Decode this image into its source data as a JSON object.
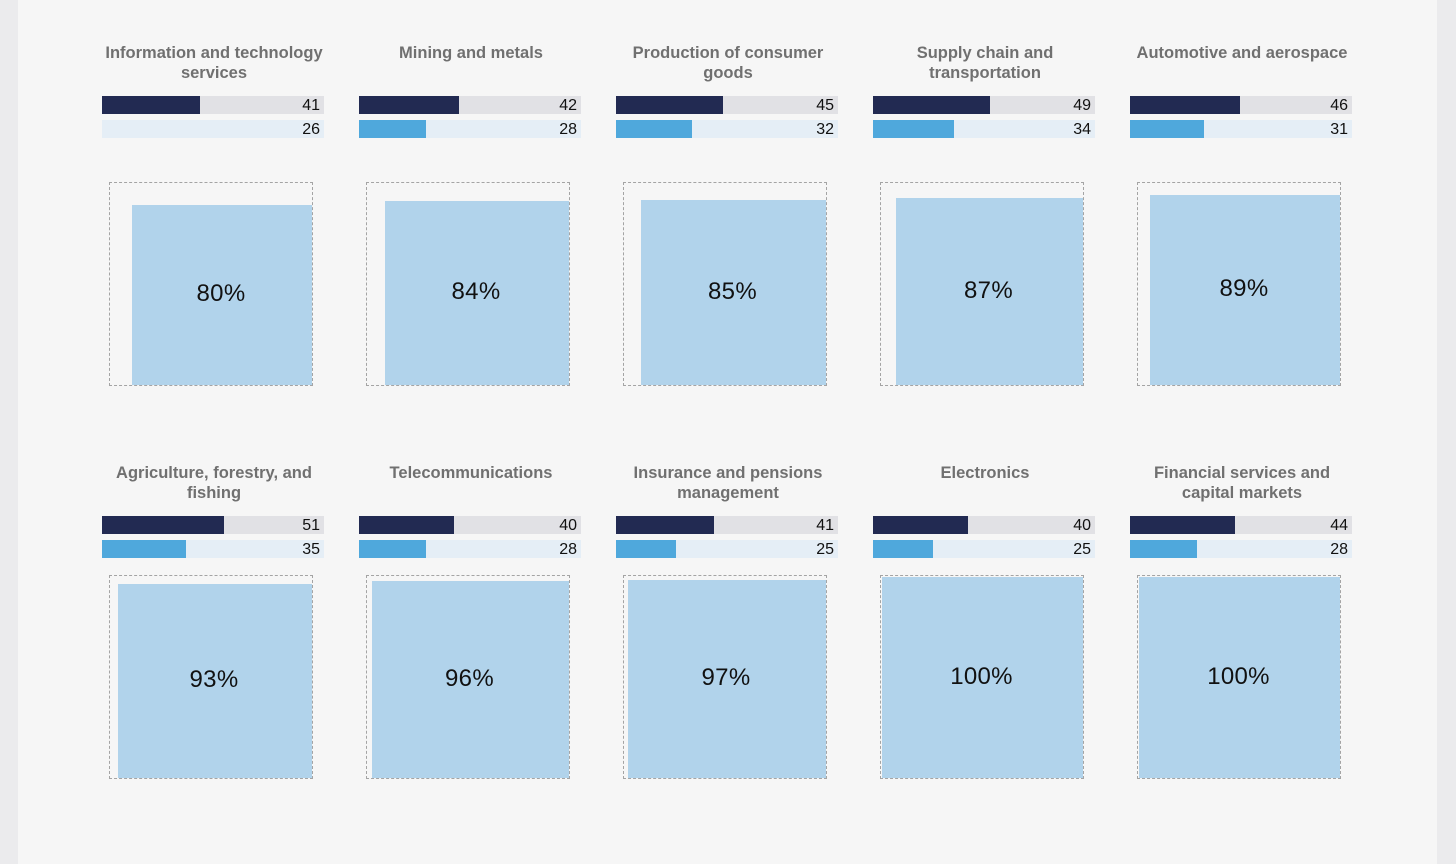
{
  "colors": {
    "dark_bar": "#222a52",
    "dark_track": "#e1e1e5",
    "light_bar": "#4fa8dc",
    "light_track": "#e5eef6",
    "square_fill": "#b1d3eb"
  },
  "bar_scale_max": 93,
  "chart_data": {
    "type": "bar",
    "title": "",
    "categories": [
      "Information and technology services",
      "Mining and metals",
      "Production of consumer goods",
      "Supply chain and transportation",
      "Automotive and aerospace",
      "Agriculture, forestry, and fishing",
      "Telecommunications",
      "Insurance and pensions management",
      "Electronics",
      "Financial services and capital markets"
    ],
    "panels": [
      {
        "title": "Information and technology services",
        "dark_value": "41",
        "light_value": "26",
        "dark": 41,
        "light": 26,
        "percent_label": "80%",
        "percent": 80,
        "light_bar_shown": false
      },
      {
        "title": "Mining and metals",
        "dark_value": "42",
        "light_value": "28",
        "dark": 42,
        "light": 28,
        "percent_label": "84%",
        "percent": 84,
        "light_bar_shown": true
      },
      {
        "title": "Production of consumer goods",
        "dark_value": "45",
        "light_value": "32",
        "dark": 45,
        "light": 32,
        "percent_label": "85%",
        "percent": 85,
        "light_bar_shown": true
      },
      {
        "title": "Supply chain and transportation",
        "dark_value": "49",
        "light_value": "34",
        "dark": 49,
        "light": 34,
        "percent_label": "87%",
        "percent": 87,
        "light_bar_shown": true
      },
      {
        "title": "Automotive and aerospace",
        "dark_value": "46",
        "light_value": "31",
        "dark": 46,
        "light": 31,
        "percent_label": "89%",
        "percent": 89,
        "light_bar_shown": true
      },
      {
        "title": "Agriculture, forestry, and fishing",
        "dark_value": "51",
        "light_value": "35",
        "dark": 51,
        "light": 35,
        "percent_label": "93%",
        "percent": 93,
        "light_bar_shown": true
      },
      {
        "title": "Telecommunications",
        "dark_value": "40",
        "light_value": "28",
        "dark": 40,
        "light": 28,
        "percent_label": "96%",
        "percent": 96,
        "light_bar_shown": true
      },
      {
        "title": "Insurance and pensions management",
        "dark_value": "41",
        "light_value": "25",
        "dark": 41,
        "light": 25,
        "percent_label": "97%",
        "percent": 97,
        "light_bar_shown": true
      },
      {
        "title": "Electronics",
        "dark_value": "40",
        "light_value": "25",
        "dark": 40,
        "light": 25,
        "percent_label": "100%",
        "percent": 100,
        "light_bar_shown": true
      },
      {
        "title": "Financial services and capital markets",
        "dark_value": "44",
        "light_value": "28",
        "dark": 44,
        "light": 28,
        "percent_label": "100%",
        "percent": 100,
        "light_bar_shown": true
      }
    ]
  }
}
